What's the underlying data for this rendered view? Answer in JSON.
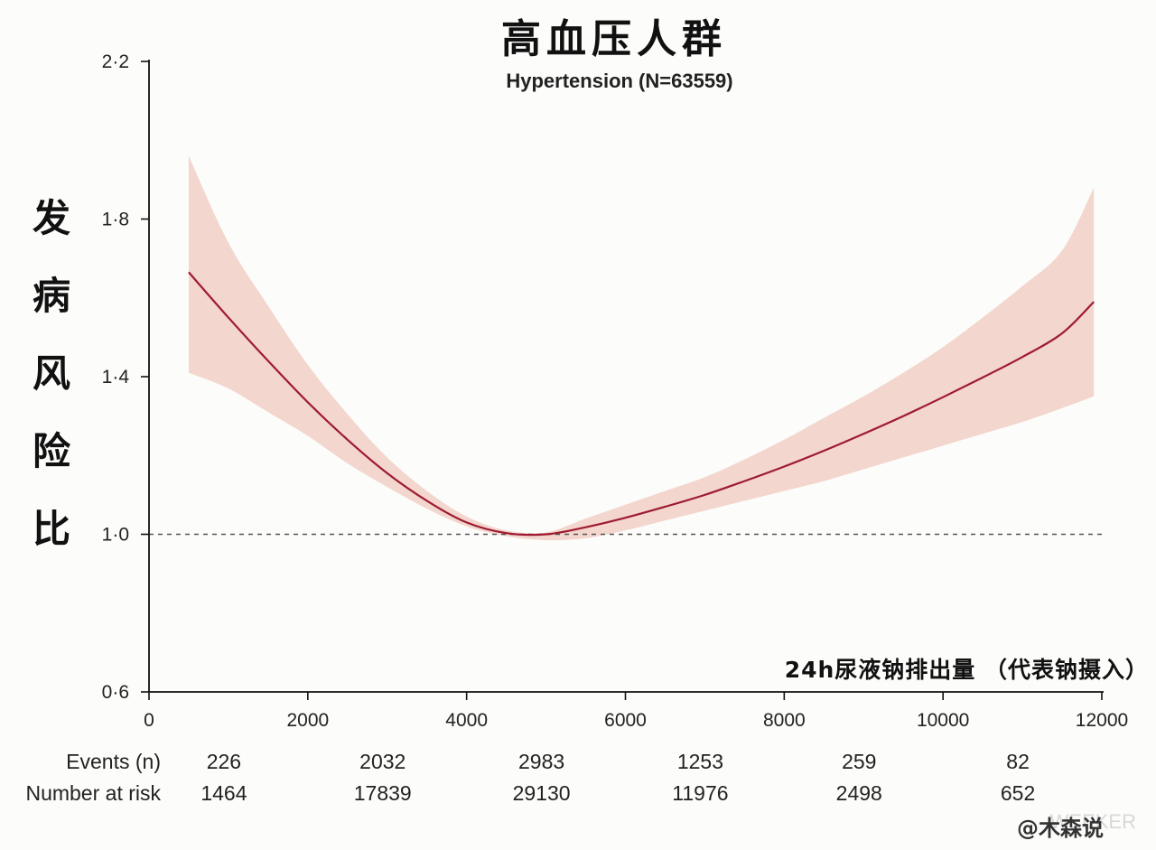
{
  "colors": {
    "curve": "#9e1b32",
    "band": "#f3d6cd",
    "reference_line": "#555555",
    "axis": "#111111"
  },
  "chart_data": {
    "type": "line",
    "title": "高血压人群",
    "subtitle": "Hypertension (N=63559)",
    "ylabel": "发病风险比",
    "xlabel": "24h尿液钠排出量 （代表钠摄入）",
    "xlim": [
      0,
      12000
    ],
    "ylim": [
      0.6,
      2.2
    ],
    "x_ticks": [
      0,
      2000,
      4000,
      6000,
      8000,
      10000,
      12000
    ],
    "x_tick_labels": [
      "0",
      "2000",
      "4000",
      "6000",
      "8000",
      "10000",
      "12000"
    ],
    "y_ticks": [
      0.6,
      1.0,
      1.4,
      1.8,
      2.2
    ],
    "y_tick_labels": [
      "0·6",
      "1·0",
      "1·4",
      "1·8",
      "2·2"
    ],
    "reference_line": {
      "y": 1.0,
      "style": "dashed"
    },
    "grid": false,
    "series": [
      {
        "x": [
          500,
          1000,
          1500,
          2000,
          2500,
          3000,
          3500,
          4000,
          4500,
          5000,
          5500,
          6000,
          6500,
          7000,
          7500,
          8000,
          8500,
          9000,
          9500,
          10000,
          10500,
          11000,
          11500,
          11900
        ],
        "y": [
          1.665,
          1.55,
          1.44,
          1.335,
          1.24,
          1.155,
          1.085,
          1.03,
          1.003,
          1.0,
          1.018,
          1.042,
          1.07,
          1.1,
          1.135,
          1.172,
          1.212,
          1.255,
          1.3,
          1.348,
          1.398,
          1.45,
          1.51,
          1.59
        ],
        "ci_lower": [
          1.41,
          1.37,
          1.31,
          1.25,
          1.18,
          1.12,
          1.065,
          1.02,
          0.995,
          0.985,
          0.99,
          1.01,
          1.035,
          1.06,
          1.085,
          1.11,
          1.135,
          1.165,
          1.195,
          1.225,
          1.255,
          1.285,
          1.32,
          1.35
        ],
        "ci_upper": [
          1.96,
          1.74,
          1.58,
          1.43,
          1.305,
          1.195,
          1.11,
          1.045,
          1.01,
          1.005,
          1.04,
          1.075,
          1.11,
          1.145,
          1.19,
          1.24,
          1.295,
          1.35,
          1.41,
          1.475,
          1.55,
          1.63,
          1.72,
          1.88
        ]
      }
    ],
    "risk_table": {
      "row_labels": [
        "Events (n)",
        "Number at risk"
      ],
      "columns_x": [
        1000,
        3000,
        5000,
        7000,
        9000,
        11000
      ],
      "events": [
        "226",
        "2032",
        "2983",
        "1253",
        "259",
        "82"
      ],
      "number_at_risk": [
        "1464",
        "17839",
        "29130",
        "11976",
        "2498",
        "652"
      ]
    }
  },
  "watermark": {
    "text": "@木森说",
    "faint_text": "WEEKER"
  }
}
